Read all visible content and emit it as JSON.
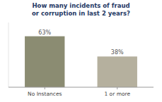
{
  "chart_data": {
    "type": "bar",
    "title": "How many incidents of fraud\nor corruption in last 2 years?",
    "categories": [
      "No Instances",
      "1 or more"
    ],
    "values": [
      63,
      38
    ],
    "value_labels": [
      "63%",
      "38%"
    ],
    "colors": [
      "#8b8c72",
      "#b5b09e"
    ],
    "ylim": [
      0,
      80
    ],
    "data_labels": true,
    "tick_labels": "x",
    "grid": false
  }
}
